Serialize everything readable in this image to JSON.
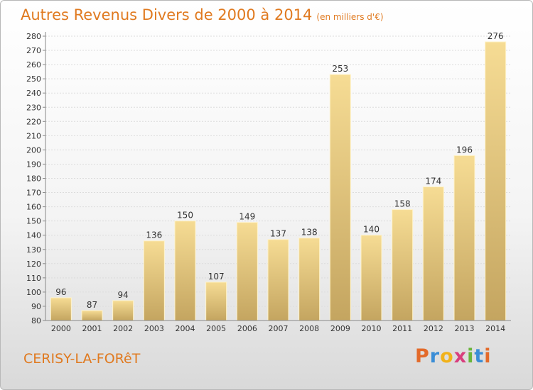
{
  "chart_data": {
    "type": "bar",
    "title": "Autres Revenus Divers de 2000 à 2014",
    "subtitle": "(en milliers d'€)",
    "xlabel": "",
    "ylabel": "",
    "categories": [
      "2000",
      "2001",
      "2002",
      "2003",
      "2004",
      "2005",
      "2006",
      "2007",
      "2008",
      "2009",
      "2010",
      "2011",
      "2012",
      "2013",
      "2014"
    ],
    "values": [
      96,
      87,
      94,
      136,
      150,
      107,
      149,
      137,
      138,
      253,
      140,
      158,
      174,
      196,
      276
    ],
    "ylim": [
      80,
      280
    ],
    "yticks": [
      80,
      90,
      100,
      110,
      120,
      130,
      140,
      150,
      160,
      170,
      180,
      190,
      200,
      210,
      220,
      230,
      240,
      250,
      260,
      270,
      280
    ],
    "grid": true,
    "bar_color": "#e9cf86"
  },
  "footer": {
    "place": "CERISY-LA-FORêT",
    "logo": "Proxiti"
  }
}
